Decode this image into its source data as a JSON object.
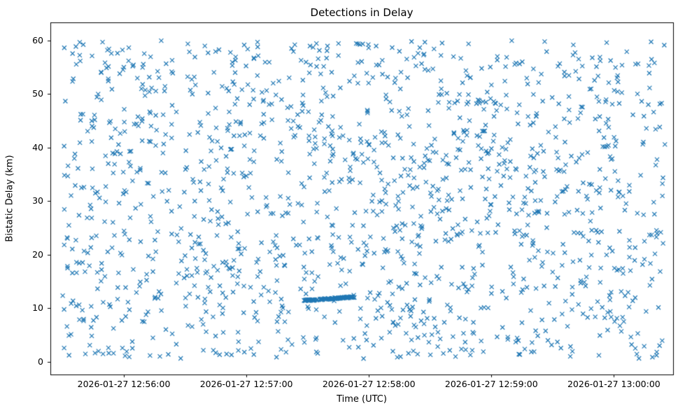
{
  "chart_data": {
    "type": "scatter",
    "title": "Detections in Delay",
    "xlabel": "Time (UTC)",
    "ylabel": "Bistatic Delay (km)",
    "marker": "x",
    "marker_color": "#1f77b4",
    "legend": "none",
    "grid": false,
    "x_axis": {
      "kind": "time",
      "domain_seconds": [
        -6,
        299
      ],
      "reference_time": "2026-01-27 12:55:30",
      "ticks": [
        {
          "t": 30,
          "label": "2026-01-27 12:56:00"
        },
        {
          "t": 90,
          "label": "2026-01-27 12:57:00"
        },
        {
          "t": 150,
          "label": "2026-01-27 12:58:00"
        },
        {
          "t": 210,
          "label": "2026-01-27 12:59:00"
        },
        {
          "t": 270,
          "label": "2026-01-27 13:00:00"
        }
      ]
    },
    "y_axis": {
      "lim": [
        -2.4,
        63.4
      ],
      "ticks": [
        0,
        10,
        20,
        30,
        40,
        50,
        60
      ]
    },
    "background_scatter": {
      "distribution": "uniform",
      "n_points": 1500,
      "t_range_seconds": [
        0,
        295
      ],
      "y_range_km": [
        0.5,
        60
      ]
    },
    "track_segment": {
      "n_points": 110,
      "t_range_seconds": [
        118,
        143
      ],
      "y_start_km": 11.4,
      "y_end_km": 12.1,
      "y_jitter_km": 0.12
    }
  }
}
